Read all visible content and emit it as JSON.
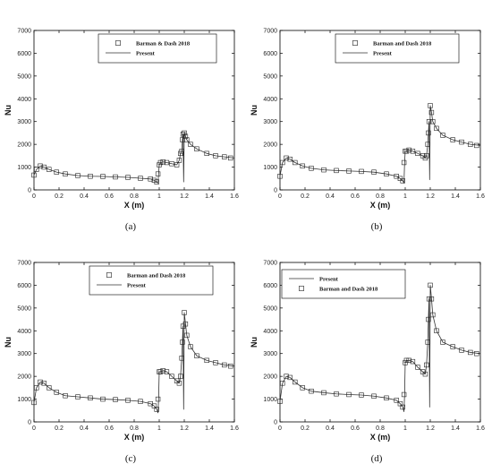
{
  "chart_data": [
    {
      "type": "line",
      "panel_label": "(a)",
      "xlabel": "X (m)",
      "ylabel": "Nu",
      "xlim": [
        0,
        1.6
      ],
      "ylim": [
        0,
        7000
      ],
      "x_ticks": [
        0,
        0.2,
        0.4,
        0.6,
        0.8,
        1,
        1.2,
        1.4,
        1.6
      ],
      "x_tick_labels": [
        "0",
        "0.2",
        "0.4",
        "0.6",
        "0.8",
        "1",
        "1.2",
        "1.4",
        "1.6"
      ],
      "y_ticks": [
        0,
        1000,
        2000,
        3000,
        4000,
        5000,
        6000,
        7000
      ],
      "y_tick_labels": [
        "0",
        "1000",
        "2000",
        "3000",
        "4000",
        "5000",
        "6000",
        "7000"
      ],
      "legend_order": [
        "markers",
        "line"
      ],
      "series": [
        {
          "name": "Barman & Dash 2018",
          "style": "markers",
          "x": [
            0,
            0.02,
            0.05,
            0.08,
            0.12,
            0.18,
            0.25,
            0.35,
            0.45,
            0.55,
            0.65,
            0.75,
            0.85,
            0.93,
            0.96,
            0.98,
            0.99,
            1.0,
            1.01,
            1.03,
            1.06,
            1.1,
            1.14,
            1.16,
            1.17,
            1.18,
            1.185,
            1.19,
            1.2,
            1.21,
            1.22,
            1.25,
            1.3,
            1.38,
            1.45,
            1.52,
            1.57
          ],
          "y": [
            650,
            900,
            1050,
            1000,
            900,
            780,
            700,
            630,
            600,
            590,
            570,
            550,
            510,
            480,
            420,
            350,
            700,
            1100,
            1200,
            1230,
            1200,
            1150,
            1100,
            1300,
            1600,
            1700,
            2200,
            2450,
            2500,
            2350,
            2200,
            2000,
            1800,
            1600,
            1500,
            1450,
            1400
          ]
        },
        {
          "name": "Present",
          "style": "line",
          "x": [
            0,
            0.02,
            0.05,
            0.08,
            0.12,
            0.18,
            0.25,
            0.35,
            0.45,
            0.55,
            0.65,
            0.75,
            0.85,
            0.93,
            0.96,
            0.98,
            0.99,
            0.995,
            1.0,
            1.01,
            1.03,
            1.06,
            1.1,
            1.14,
            1.16,
            1.17,
            1.18,
            1.185,
            1.19,
            1.195,
            1.2,
            1.21,
            1.22,
            1.25,
            1.3,
            1.38,
            1.45,
            1.52,
            1.6
          ],
          "y": [
            650,
            900,
            1050,
            1000,
            900,
            780,
            700,
            630,
            600,
            590,
            570,
            550,
            510,
            480,
            420,
            350,
            300,
            700,
            1100,
            1200,
            1230,
            1200,
            1150,
            1100,
            1300,
            1600,
            1700,
            2200,
            2450,
            350,
            2500,
            2350,
            2200,
            2000,
            1800,
            1600,
            1500,
            1450,
            1400
          ]
        }
      ]
    },
    {
      "type": "line",
      "panel_label": "(b)",
      "xlabel": "X (m)",
      "ylabel": "Nu",
      "xlim": [
        0,
        1.6
      ],
      "ylim": [
        0,
        7000
      ],
      "x_ticks": [
        0,
        0.2,
        0.4,
        0.6,
        0.8,
        1,
        1.2,
        1.4,
        1.6
      ],
      "x_tick_labels": [
        "0",
        "0.2",
        "0.4",
        "0.6",
        "0.8",
        "1",
        "1.2",
        "1.4",
        "1.6"
      ],
      "y_ticks": [
        0,
        1000,
        2000,
        3000,
        4000,
        5000,
        6000,
        7000
      ],
      "y_tick_labels": [
        "0",
        "1000",
        "2000",
        "3000",
        "4000",
        "5000",
        "6000",
        "7000"
      ],
      "legend_order": [
        "markers",
        "line"
      ],
      "series": [
        {
          "name": "Barman and Dash 2018",
          "style": "markers",
          "x": [
            0,
            0.02,
            0.05,
            0.08,
            0.12,
            0.18,
            0.25,
            0.35,
            0.45,
            0.55,
            0.65,
            0.75,
            0.85,
            0.93,
            0.96,
            0.98,
            0.99,
            1.0,
            1.01,
            1.03,
            1.06,
            1.1,
            1.14,
            1.16,
            1.17,
            1.18,
            1.185,
            1.19,
            1.2,
            1.21,
            1.22,
            1.25,
            1.3,
            1.38,
            1.45,
            1.52,
            1.57
          ],
          "y": [
            600,
            1200,
            1400,
            1350,
            1200,
            1050,
            950,
            880,
            850,
            830,
            810,
            780,
            700,
            600,
            500,
            400,
            1200,
            1700,
            1700,
            1750,
            1700,
            1600,
            1500,
            1400,
            1500,
            2000,
            2500,
            3000,
            3700,
            3400,
            3000,
            2700,
            2400,
            2200,
            2100,
            2000,
            1950
          ]
        },
        {
          "name": "Present",
          "style": "line",
          "x": [
            0,
            0.02,
            0.05,
            0.08,
            0.12,
            0.18,
            0.25,
            0.35,
            0.45,
            0.55,
            0.65,
            0.75,
            0.85,
            0.93,
            0.96,
            0.98,
            0.99,
            0.995,
            1.0,
            1.01,
            1.03,
            1.06,
            1.1,
            1.14,
            1.16,
            1.17,
            1.18,
            1.185,
            1.19,
            1.195,
            1.2,
            1.21,
            1.22,
            1.25,
            1.3,
            1.38,
            1.45,
            1.52,
            1.6
          ],
          "y": [
            600,
            1200,
            1400,
            1350,
            1200,
            1050,
            950,
            880,
            850,
            830,
            810,
            780,
            700,
            600,
            500,
            400,
            300,
            1200,
            1700,
            1700,
            1750,
            1700,
            1600,
            1500,
            1400,
            1500,
            2000,
            2500,
            3000,
            450,
            3700,
            3400,
            3000,
            2700,
            2400,
            2200,
            2100,
            2000,
            1950
          ]
        }
      ]
    },
    {
      "type": "line",
      "panel_label": "(c)",
      "xlabel": "X (m)",
      "ylabel": "Nu",
      "xlim": [
        0,
        1.6
      ],
      "ylim": [
        0,
        7000
      ],
      "x_ticks": [
        0,
        0.2,
        0.4,
        0.6,
        0.8,
        1,
        1.2,
        1.4,
        1.6
      ],
      "x_tick_labels": [
        "0",
        "0.2",
        "0.4",
        "0.6",
        "0.8",
        "1",
        "1.2",
        "1.4",
        "1.6"
      ],
      "y_ticks": [
        0,
        1000,
        2000,
        3000,
        4000,
        5000,
        6000,
        7000
      ],
      "y_tick_labels": [
        "0",
        "1000",
        "2000",
        "3000",
        "4000",
        "5000",
        "6000",
        "7000"
      ],
      "legend_order": [
        "markers",
        "line"
      ],
      "series": [
        {
          "name": "Barman and Dash 2018",
          "style": "markers",
          "x": [
            0,
            0.02,
            0.05,
            0.08,
            0.12,
            0.18,
            0.25,
            0.35,
            0.45,
            0.55,
            0.65,
            0.75,
            0.85,
            0.93,
            0.96,
            0.98,
            0.99,
            1.0,
            1.01,
            1.03,
            1.06,
            1.1,
            1.14,
            1.16,
            1.17,
            1.18,
            1.185,
            1.19,
            1.2,
            1.21,
            1.22,
            1.25,
            1.3,
            1.38,
            1.45,
            1.52,
            1.57
          ],
          "y": [
            850,
            1500,
            1750,
            1700,
            1500,
            1300,
            1150,
            1100,
            1050,
            1000,
            980,
            950,
            900,
            800,
            700,
            550,
            1000,
            2200,
            2200,
            2250,
            2200,
            2000,
            1800,
            1700,
            2000,
            2800,
            3500,
            4200,
            4800,
            4300,
            3800,
            3300,
            2900,
            2700,
            2600,
            2500,
            2450
          ]
        },
        {
          "name": "Present",
          "style": "line",
          "x": [
            0,
            0.02,
            0.05,
            0.08,
            0.12,
            0.18,
            0.25,
            0.35,
            0.45,
            0.55,
            0.65,
            0.75,
            0.85,
            0.93,
            0.96,
            0.98,
            0.99,
            0.995,
            1.0,
            1.01,
            1.03,
            1.06,
            1.1,
            1.14,
            1.16,
            1.17,
            1.18,
            1.185,
            1.19,
            1.195,
            1.2,
            1.21,
            1.22,
            1.25,
            1.3,
            1.38,
            1.45,
            1.52,
            1.6
          ],
          "y": [
            850,
            1500,
            1750,
            1700,
            1500,
            1300,
            1150,
            1100,
            1050,
            1000,
            980,
            950,
            900,
            800,
            700,
            550,
            400,
            1000,
            2200,
            2200,
            2250,
            2200,
            2000,
            1800,
            1700,
            2000,
            2800,
            3500,
            4200,
            550,
            4800,
            4300,
            3800,
            3300,
            2900,
            2700,
            2600,
            2500,
            2450
          ]
        }
      ]
    },
    {
      "type": "line",
      "panel_label": "(d)",
      "xlabel": "X (m)",
      "ylabel": "Nu",
      "xlim": [
        0,
        1.6
      ],
      "ylim": [
        0,
        7000
      ],
      "x_ticks": [
        0,
        0.2,
        0.4,
        0.6,
        0.8,
        1,
        1.2,
        1.4,
        1.6
      ],
      "x_tick_labels": [
        "0",
        "0.2",
        "0.4",
        "0.6",
        "0.8",
        "1",
        "1.2",
        "1.4",
        "1.6"
      ],
      "y_ticks": [
        0,
        1000,
        2000,
        3000,
        4000,
        5000,
        6000,
        7000
      ],
      "y_tick_labels": [
        "0",
        "1000",
        "2000",
        "3000",
        "4000",
        "5000",
        "6000",
        "7000"
      ],
      "legend_order": [
        "line",
        "markers"
      ],
      "series": [
        {
          "name": "Barman and Dash 2018",
          "style": "markers",
          "x": [
            0,
            0.02,
            0.05,
            0.08,
            0.12,
            0.18,
            0.25,
            0.35,
            0.45,
            0.55,
            0.65,
            0.75,
            0.85,
            0.93,
            0.96,
            0.98,
            0.99,
            1.0,
            1.01,
            1.03,
            1.06,
            1.1,
            1.14,
            1.16,
            1.17,
            1.18,
            1.185,
            1.19,
            1.2,
            1.21,
            1.22,
            1.25,
            1.3,
            1.38,
            1.45,
            1.52,
            1.57
          ],
          "y": [
            900,
            1700,
            2000,
            1950,
            1750,
            1500,
            1350,
            1280,
            1230,
            1200,
            1180,
            1130,
            1050,
            950,
            800,
            650,
            1200,
            2600,
            2700,
            2700,
            2650,
            2400,
            2200,
            2100,
            2500,
            3500,
            4500,
            5400,
            6000,
            5400,
            4700,
            4000,
            3500,
            3300,
            3150,
            3050,
            3000
          ]
        },
        {
          "name": "Present",
          "style": "line",
          "x": [
            0,
            0.02,
            0.05,
            0.08,
            0.12,
            0.18,
            0.25,
            0.35,
            0.45,
            0.55,
            0.65,
            0.75,
            0.85,
            0.93,
            0.96,
            0.98,
            0.99,
            0.995,
            1.0,
            1.01,
            1.03,
            1.06,
            1.1,
            1.14,
            1.16,
            1.17,
            1.18,
            1.185,
            1.19,
            1.195,
            1.2,
            1.21,
            1.22,
            1.25,
            1.3,
            1.38,
            1.45,
            1.52,
            1.6
          ],
          "y": [
            900,
            1700,
            2000,
            1950,
            1750,
            1500,
            1350,
            1280,
            1230,
            1200,
            1180,
            1130,
            1050,
            950,
            800,
            650,
            450,
            1200,
            2600,
            2700,
            2700,
            2650,
            2400,
            2200,
            2100,
            2500,
            3500,
            4500,
            5400,
            650,
            6000,
            5400,
            4700,
            4000,
            3500,
            3300,
            3150,
            3050,
            3000
          ]
        }
      ]
    }
  ]
}
